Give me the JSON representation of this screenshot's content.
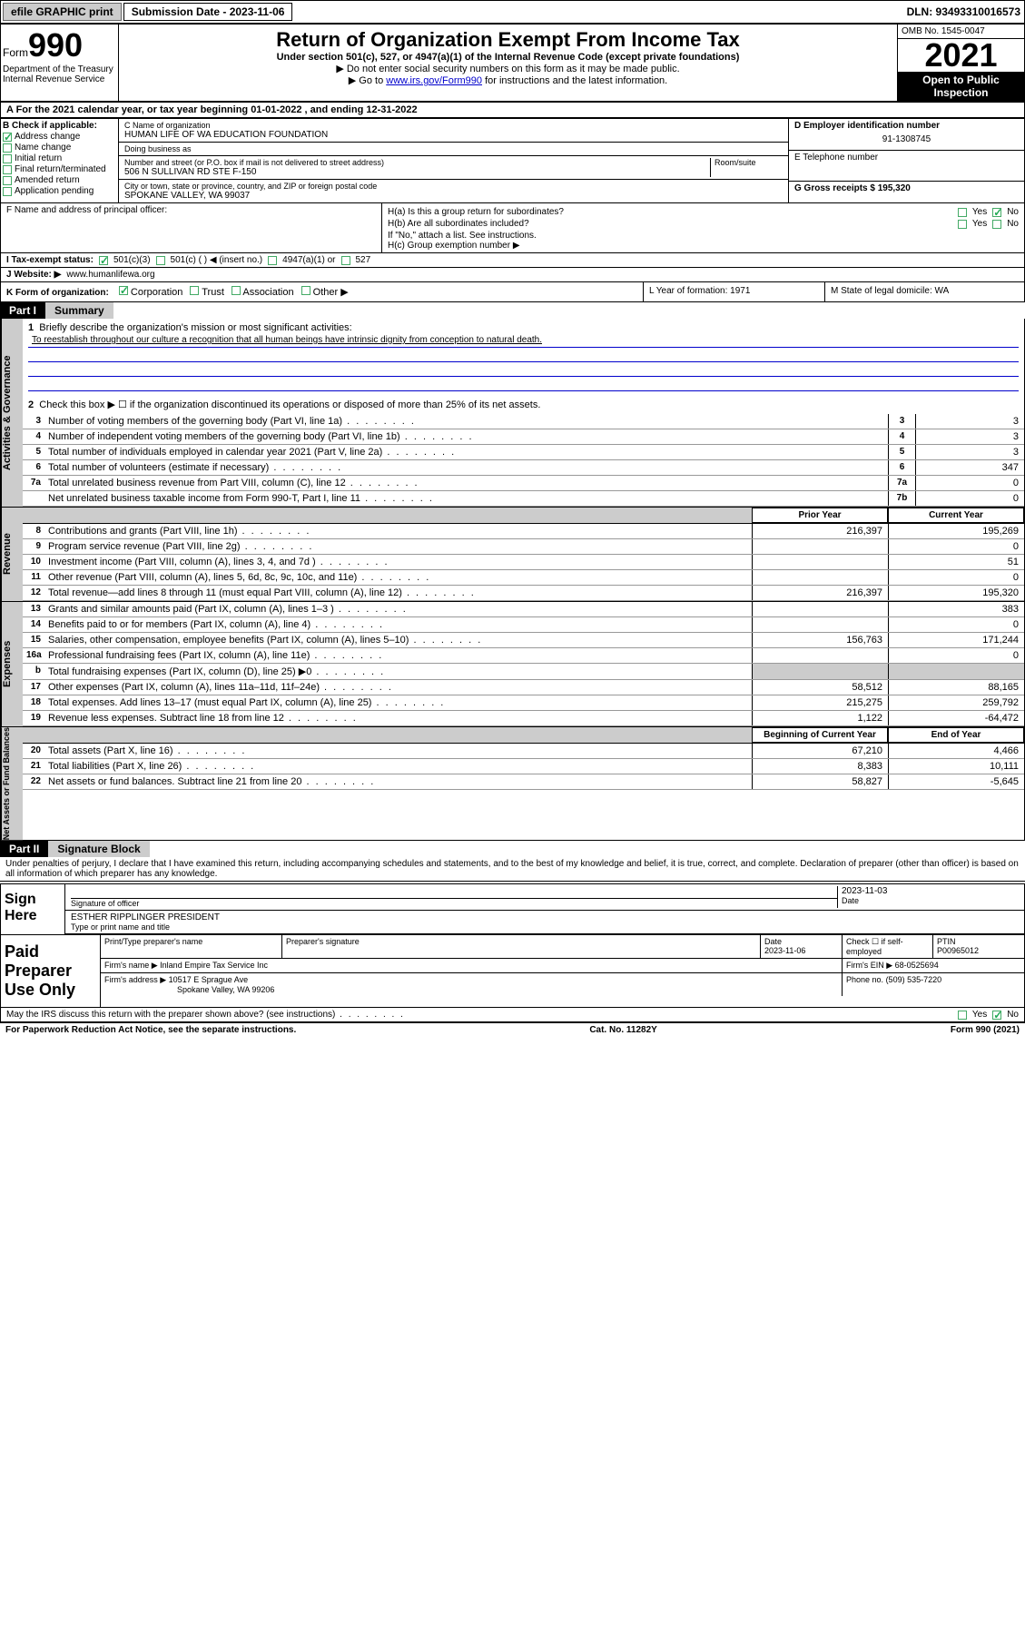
{
  "topbar": {
    "efile": "efile GRAPHIC print",
    "submission_label": "Submission Date - 2023-11-06",
    "dln_label": "DLN: 93493310016573"
  },
  "header": {
    "form_word": "Form",
    "form_number": "990",
    "dept": "Department of the Treasury",
    "irs": "Internal Revenue Service",
    "title": "Return of Organization Exempt From Income Tax",
    "subtitle": "Under section 501(c), 527, or 4947(a)(1) of the Internal Revenue Code (except private foundations)",
    "note1": "▶ Do not enter social security numbers on this form as it may be made public.",
    "note2_pre": "▶ Go to ",
    "note2_link": "www.irs.gov/Form990",
    "note2_post": " for instructions and the latest information.",
    "omb": "OMB No. 1545-0047",
    "year": "2021",
    "inspect1": "Open to Public",
    "inspect2": "Inspection"
  },
  "section_a": "A For the 2021 calendar year, or tax year beginning 01-01-2022   , and ending 12-31-2022",
  "section_b": {
    "label": "B Check if applicable:",
    "items": [
      "Address change",
      "Name change",
      "Initial return",
      "Final return/terminated",
      "Amended return",
      "Application pending"
    ],
    "checked_index": 0
  },
  "section_c": {
    "name_label": "C Name of organization",
    "name": "HUMAN LIFE OF WA EDUCATION FOUNDATION",
    "dba_label": "Doing business as",
    "street_label": "Number and street (or P.O. box if mail is not delivered to street address)",
    "room_label": "Room/suite",
    "street": "506 N SULLIVAN RD STE F-150",
    "city_label": "City or town, state or province, country, and ZIP or foreign postal code",
    "city": "SPOKANE VALLEY, WA  99037"
  },
  "section_d": {
    "label": "D Employer identification number",
    "ein": "91-1308745"
  },
  "section_e": {
    "label": "E Telephone number"
  },
  "section_g": {
    "label": "G Gross receipts $ 195,320"
  },
  "section_f": {
    "label": "F  Name and address of principal officer:"
  },
  "section_h": {
    "ha": "H(a)  Is this a group return for subordinates?",
    "hb": "H(b)  Are all subordinates included?",
    "hb_note": "If \"No,\" attach a list. See instructions.",
    "hc": "H(c)  Group exemption number ▶",
    "yes": "Yes",
    "no": "No",
    "ha_answer": "no"
  },
  "section_i": {
    "label": "I     Tax-exempt status:",
    "opt1": "501(c)(3)",
    "opt2": "501(c) (   ) ◀ (insert no.)",
    "opt3": "4947(a)(1) or",
    "opt4": "527",
    "checked": "opt1"
  },
  "section_j": {
    "label": "J    Website: ▶",
    "value": " www.humanlifewa.org"
  },
  "section_k": {
    "label": "K Form of organization:",
    "opts": [
      "Corporation",
      "Trust",
      "Association",
      "Other ▶"
    ],
    "checked_index": 0
  },
  "section_l": {
    "label": "L Year of formation: 1971"
  },
  "section_m": {
    "label": "M State of legal domicile: WA"
  },
  "part1": {
    "header": "Part I",
    "title": "Summary",
    "line1_label": "Briefly describe the organization's mission or most significant activities:",
    "line1_text": "To reestablish throughout our culture a recognition that all human beings have intrinsic dignity from conception to natural death.",
    "line2": "Check this box ▶ ☐  if the organization discontinued its operations or disposed of more than 25% of its net assets.",
    "side1": "Activities & Governance",
    "side2": "Revenue",
    "side3": "Expenses",
    "side4": "Net Assets or Fund Balances",
    "rows_gov": [
      {
        "num": "3",
        "text": "Number of voting members of the governing body (Part VI, line 1a)",
        "box": "3",
        "val": "3"
      },
      {
        "num": "4",
        "text": "Number of independent voting members of the governing body (Part VI, line 1b)",
        "box": "4",
        "val": "3"
      },
      {
        "num": "5",
        "text": "Total number of individuals employed in calendar year 2021 (Part V, line 2a)",
        "box": "5",
        "val": "3"
      },
      {
        "num": "6",
        "text": "Total number of volunteers (estimate if necessary)",
        "box": "6",
        "val": "347"
      },
      {
        "num": "7a",
        "text": "Total unrelated business revenue from Part VIII, column (C), line 12",
        "box": "7a",
        "val": "0"
      },
      {
        "num": "",
        "text": "Net unrelated business taxable income from Form 990-T, Part I, line 11",
        "box": "7b",
        "val": "0"
      }
    ],
    "col_prior": "Prior Year",
    "col_curr": "Current Year",
    "rows_rev": [
      {
        "num": "8",
        "text": "Contributions and grants (Part VIII, line 1h)",
        "prior": "216,397",
        "curr": "195,269"
      },
      {
        "num": "9",
        "text": "Program service revenue (Part VIII, line 2g)",
        "prior": "",
        "curr": "0"
      },
      {
        "num": "10",
        "text": "Investment income (Part VIII, column (A), lines 3, 4, and 7d )",
        "prior": "",
        "curr": "51"
      },
      {
        "num": "11",
        "text": "Other revenue (Part VIII, column (A), lines 5, 6d, 8c, 9c, 10c, and 11e)",
        "prior": "",
        "curr": "0"
      },
      {
        "num": "12",
        "text": "Total revenue—add lines 8 through 11 (must equal Part VIII, column (A), line 12)",
        "prior": "216,397",
        "curr": "195,320"
      }
    ],
    "rows_exp": [
      {
        "num": "13",
        "text": "Grants and similar amounts paid (Part IX, column (A), lines 1–3 )",
        "prior": "",
        "curr": "383"
      },
      {
        "num": "14",
        "text": "Benefits paid to or for members (Part IX, column (A), line 4)",
        "prior": "",
        "curr": "0"
      },
      {
        "num": "15",
        "text": "Salaries, other compensation, employee benefits (Part IX, column (A), lines 5–10)",
        "prior": "156,763",
        "curr": "171,244"
      },
      {
        "num": "16a",
        "text": "Professional fundraising fees (Part IX, column (A), line 11e)",
        "prior": "",
        "curr": "0"
      },
      {
        "num": "b",
        "text": "Total fundraising expenses (Part IX, column (D), line 25) ▶0",
        "prior": "shaded",
        "curr": "shaded"
      },
      {
        "num": "17",
        "text": "Other expenses (Part IX, column (A), lines 11a–11d, 11f–24e)",
        "prior": "58,512",
        "curr": "88,165"
      },
      {
        "num": "18",
        "text": "Total expenses. Add lines 13–17 (must equal Part IX, column (A), line 25)",
        "prior": "215,275",
        "curr": "259,792"
      },
      {
        "num": "19",
        "text": "Revenue less expenses. Subtract line 18 from line 12",
        "prior": "1,122",
        "curr": "-64,472"
      }
    ],
    "col_begin": "Beginning of Current Year",
    "col_end": "End of Year",
    "rows_net": [
      {
        "num": "20",
        "text": "Total assets (Part X, line 16)",
        "prior": "67,210",
        "curr": "4,466"
      },
      {
        "num": "21",
        "text": "Total liabilities (Part X, line 26)",
        "prior": "8,383",
        "curr": "10,111"
      },
      {
        "num": "22",
        "text": "Net assets or fund balances. Subtract line 21 from line 20",
        "prior": "58,827",
        "curr": "-5,645"
      }
    ]
  },
  "part2": {
    "header": "Part II",
    "title": "Signature Block",
    "declaration": "Under penalties of perjury, I declare that I have examined this return, including accompanying schedules and statements, and to the best of my knowledge and belief, it is true, correct, and complete. Declaration of preparer (other than officer) is based on all information of which preparer has any knowledge.",
    "sign_here": "Sign Here",
    "sig_officer_label": "Signature of officer",
    "sig_date_label": "Date",
    "sig_date": "2023-11-03",
    "sig_name": "ESTHER RIPPLINGER  PRESIDENT",
    "sig_name_label": "Type or print name and title",
    "paid": "Paid Preparer Use Only",
    "prep_name_label": "Print/Type preparer's name",
    "prep_sig_label": "Preparer's signature",
    "prep_date_label": "Date",
    "prep_date": "2023-11-06",
    "prep_check_label": "Check ☐ if self-employed",
    "ptin_label": "PTIN",
    "ptin": "P00965012",
    "firm_name_label": "Firm's name      ▶",
    "firm_name": "Inland Empire Tax Service Inc",
    "firm_ein_label": "Firm's EIN ▶",
    "firm_ein": "68-0525694",
    "firm_addr_label": "Firm's address ▶",
    "firm_addr1": "10517 E Sprague Ave",
    "firm_addr2": "Spokane Valley, WA  99206",
    "phone_label": "Phone no.",
    "phone": "(509) 535-7220",
    "discuss": "May the IRS discuss this return with the preparer shown above? (see instructions)",
    "discuss_answer": "no"
  },
  "footer": {
    "left": "For Paperwork Reduction Act Notice, see the separate instructions.",
    "mid": "Cat. No. 11282Y",
    "right_pre": "Form ",
    "right_num": "990",
    "right_post": " (2021)"
  }
}
